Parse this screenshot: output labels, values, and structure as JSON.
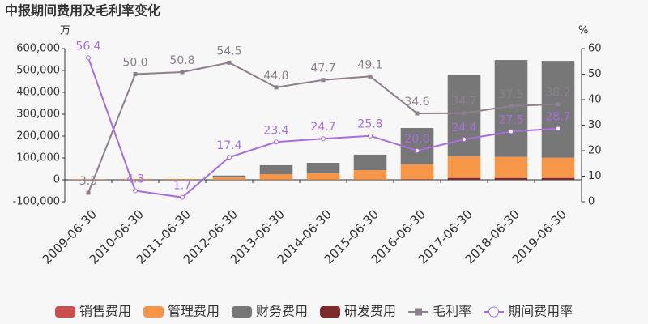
{
  "chart_data": {
    "type": "bar-line",
    "title": "中报期间费用及毛利率变化",
    "y_unit": "万",
    "y2_unit": "%",
    "categories": [
      "2009-06-30",
      "2010-06-30",
      "2011-06-30",
      "2012-06-30",
      "2013-06-30",
      "2014-06-30",
      "2015-06-30",
      "2016-06-30",
      "2017-06-30",
      "2018-06-30",
      "2019-06-30"
    ],
    "series": [
      {
        "name": "销售费用",
        "color": "#c94f4f",
        "kind": "bar",
        "values": [
          500,
          500,
          500,
          500,
          800,
          800,
          1000,
          1000,
          2000,
          2000,
          2000
        ]
      },
      {
        "name": "管理费用",
        "color": "#f79646",
        "kind": "bar",
        "values": [
          2000,
          3000,
          3000,
          11000,
          25000,
          29000,
          43000,
          68000,
          98000,
          95000,
          91000
        ]
      },
      {
        "name": "财务费用",
        "color": "#777777",
        "kind": "bar",
        "values": [
          500,
          500,
          500,
          8000,
          41000,
          48000,
          71000,
          166000,
          373000,
          443000,
          443000
        ]
      },
      {
        "name": "研发费用",
        "color": "#7b2b2b",
        "kind": "bar",
        "values": [
          0,
          0,
          0,
          0,
          0,
          0,
          0,
          2000,
          8000,
          8000,
          8000
        ]
      },
      {
        "name": "毛利率",
        "color": "#8e7f8e",
        "kind": "line",
        "axis": "y2",
        "marker": "square",
        "values": [
          3.5,
          50.0,
          50.8,
          54.5,
          44.8,
          47.7,
          49.1,
          34.6,
          34.7,
          37.5,
          38.2
        ],
        "value_labels": [
          "3.5",
          "50.0",
          "50.8",
          "54.5",
          "44.8",
          "47.7",
          "49.1",
          "34.6",
          "34.7",
          "37.5",
          "38.2"
        ]
      },
      {
        "name": "期间费用率",
        "color": "#a66ee0",
        "kind": "line",
        "axis": "y2",
        "marker": "circle",
        "values": [
          56.4,
          4.3,
          1.7,
          17.4,
          23.4,
          24.7,
          25.8,
          20.0,
          24.4,
          27.5,
          28.7
        ],
        "value_labels": [
          "56.4",
          "4.3",
          "1.7",
          "17.4",
          "23.4",
          "24.7",
          "25.8",
          "20.0",
          "24.4",
          "27.5",
          "28.7"
        ]
      }
    ],
    "ylim": [
      -100000,
      600000
    ],
    "yticks": [
      {
        "value": -100000,
        "label": "-100,000"
      },
      0,
      {
        "value": 100000,
        "label": "100,000"
      },
      {
        "value": 200000,
        "label": "200,000"
      },
      {
        "value": 300000,
        "label": "300,000"
      },
      {
        "value": 400000,
        "label": "400,000"
      },
      {
        "value": 500000,
        "label": "500,000"
      },
      {
        "value": 600000,
        "label": "600,000"
      }
    ],
    "y2lim": [
      0,
      60
    ],
    "y2ticks": [
      0,
      10,
      20,
      30,
      40,
      50,
      60
    ],
    "grid": false,
    "legend": "bottom"
  }
}
